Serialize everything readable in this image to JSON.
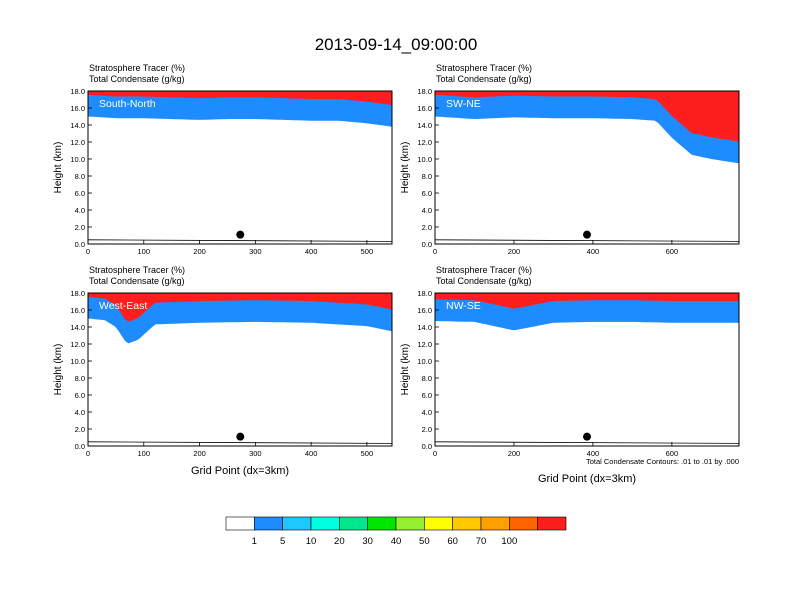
{
  "title": "2013-09-14_09:00:00",
  "field_labels": [
    "Stratosphere Tracer   (%)",
    "Total Condensate   (g/kg)"
  ],
  "ylabel": "Height (km)",
  "xlabel": "Grid Point (dx=3km)",
  "contour_note": "Total Condensate Contours: .01 to .01 by .000",
  "colorbar": {
    "colors": [
      "#ffffff",
      "#1e8cff",
      "#1ec8ff",
      "#00ffe0",
      "#00e68c",
      "#00e600",
      "#96f032",
      "#ffff00",
      "#ffc800",
      "#ffa000",
      "#ff6400",
      "#ff1e1e"
    ],
    "labels": [
      "1",
      "5",
      "10",
      "20",
      "30",
      "40",
      "50",
      "60",
      "70",
      "100"
    ]
  },
  "chart_data": [
    {
      "type": "heatmap",
      "panel": "South-North",
      "xlim": [
        0,
        545
      ],
      "ylim": [
        0,
        18
      ],
      "xticks": [
        0,
        100,
        200,
        300,
        400,
        500
      ],
      "yticks": [
        "0.0",
        "2.0",
        "4.0",
        "6.0",
        "8.0",
        "10.0",
        "12.0",
        "14.0",
        "16.0",
        "18.0"
      ],
      "tropopause_km": {
        "x": [
          0,
          50,
          100,
          150,
          200,
          250,
          300,
          350,
          400,
          450,
          500,
          545
        ],
        "y": [
          15.0,
          14.8,
          14.8,
          14.7,
          14.6,
          14.7,
          14.7,
          14.6,
          14.5,
          14.5,
          14.2,
          13.8
        ]
      },
      "location_marker": {
        "x": 273,
        "y": 1.1
      }
    },
    {
      "type": "heatmap",
      "panel": "SW-NE",
      "xlim": [
        0,
        770
      ],
      "ylim": [
        0,
        18
      ],
      "xticks": [
        0,
        200,
        400,
        600
      ],
      "yticks": [
        "0.0",
        "2.0",
        "4.0",
        "6.0",
        "8.0",
        "10.0",
        "12.0",
        "14.0",
        "16.0",
        "18.0"
      ],
      "tropopause_km": {
        "x": [
          0,
          100,
          200,
          300,
          400,
          500,
          560,
          600,
          650,
          700,
          770
        ],
        "y": [
          15.0,
          14.7,
          14.9,
          14.8,
          14.8,
          14.7,
          14.5,
          12.5,
          10.5,
          10.0,
          9.5
        ]
      },
      "location_marker": {
        "x": 385,
        "y": 1.1
      }
    },
    {
      "type": "heatmap",
      "panel": "West-East",
      "xlim": [
        0,
        545
      ],
      "ylim": [
        0,
        18
      ],
      "xticks": [
        0,
        100,
        200,
        300,
        400,
        500
      ],
      "yticks": [
        "0.0",
        "2.0",
        "4.0",
        "6.0",
        "8.0",
        "10.0",
        "12.0",
        "14.0",
        "16.0",
        "18.0"
      ],
      "tropopause_km": {
        "x": [
          0,
          30,
          50,
          70,
          90,
          120,
          200,
          300,
          400,
          500,
          545
        ],
        "y": [
          15.0,
          14.8,
          14.0,
          12.0,
          12.5,
          14.3,
          14.5,
          14.6,
          14.5,
          14.1,
          13.5
        ]
      },
      "location_marker": {
        "x": 273,
        "y": 1.1
      }
    },
    {
      "type": "heatmap",
      "panel": "NW-SE",
      "xlim": [
        0,
        770
      ],
      "ylim": [
        0,
        18
      ],
      "xticks": [
        0,
        200,
        400,
        600
      ],
      "yticks": [
        "0.0",
        "2.0",
        "4.0",
        "6.0",
        "8.0",
        "10.0",
        "12.0",
        "14.0",
        "16.0",
        "18.0"
      ],
      "tropopause_km": {
        "x": [
          0,
          100,
          200,
          300,
          400,
          500,
          600,
          700,
          770
        ],
        "y": [
          14.7,
          14.6,
          13.6,
          14.5,
          14.6,
          14.6,
          14.5,
          14.5,
          14.5
        ]
      },
      "location_marker": {
        "x": 385,
        "y": 1.1
      }
    }
  ]
}
